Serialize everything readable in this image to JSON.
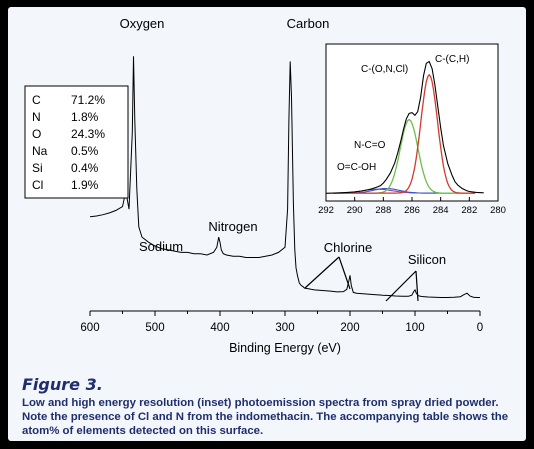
{
  "figure": {
    "label": "Figure 3.",
    "caption": "Low and high energy resolution (inset) photoemission spectra from spray dried powder. Note the presence of Cl and N from the indomethacin. The accompanying table shows the atom% of elements detected on this surface."
  },
  "composition_table": [
    {
      "element": "C",
      "value": "71.2%"
    },
    {
      "element": "N",
      "value": "1.8%"
    },
    {
      "element": "O",
      "value": "24.3%"
    },
    {
      "element": "Na",
      "value": "0.5%"
    },
    {
      "element": "Si",
      "value": "0.4%"
    },
    {
      "element": "Cl",
      "value": "1.9%"
    }
  ],
  "colors": {
    "text": "#1f2f6e",
    "background": "#f3f6fb",
    "spectrum": "#000000",
    "fit_c_ch": "#d23b2e",
    "fit_c_onc": "#6cbf4f",
    "fit_n_co": "#3b55c6",
    "fit_o_coh": "#9b3fa8"
  },
  "chart_data": [
    {
      "type": "line",
      "id": "survey",
      "xlabel": "Binding Energy (eV)",
      "ylabel": "",
      "xlim": [
        600,
        0
      ],
      "x_reversed": true,
      "xticks": [
        600,
        500,
        400,
        300,
        200,
        100,
        0
      ],
      "yaxis_visible": false,
      "grid": false,
      "x": [
        600,
        590,
        580,
        570,
        560,
        550,
        545,
        540,
        535,
        533,
        531,
        528,
        525,
        520,
        510,
        500,
        490,
        480,
        470,
        460,
        450,
        440,
        430,
        420,
        410,
        405,
        402,
        400,
        398,
        395,
        390,
        380,
        370,
        360,
        350,
        340,
        330,
        320,
        310,
        300,
        296,
        294,
        292,
        290,
        287,
        285,
        283,
        281,
        278,
        275,
        272,
        270,
        265,
        260,
        255,
        250,
        240,
        230,
        220,
        210,
        205,
        202,
        200,
        198,
        195,
        190,
        180,
        170,
        160,
        150,
        140,
        130,
        120,
        110,
        105,
        102,
        100,
        98,
        95,
        90,
        80,
        70,
        60,
        50,
        40,
        30,
        25,
        20,
        15,
        10,
        5,
        0
      ],
      "y": [
        37,
        37.3,
        37.8,
        38.5,
        39.5,
        41,
        47,
        40,
        70,
        100,
        75,
        48,
        33,
        29,
        27,
        25.5,
        24.5,
        24,
        23.5,
        23,
        23,
        22.5,
        22.5,
        22,
        23,
        25,
        29,
        27,
        24,
        22.5,
        22,
        21.5,
        21.5,
        21,
        21,
        21,
        21.5,
        22,
        23,
        25,
        40,
        75,
        98,
        84,
        42,
        24,
        17,
        14,
        11,
        10,
        9.5,
        9,
        8.8,
        8.5,
        8.3,
        8.2,
        8,
        7.8,
        7.5,
        7.6,
        8.5,
        11.5,
        14,
        10,
        7.3,
        7,
        6.8,
        6.6,
        6.4,
        6.2,
        6.1,
        5.9,
        5.8,
        5.8,
        6.2,
        7.6,
        8.3,
        7,
        6,
        5.7,
        5.5,
        5.4,
        5.3,
        5.3,
        5.4,
        5.6,
        6.4,
        7,
        5.8,
        5.4,
        5.3,
        5.3
      ],
      "ylim": [
        0,
        106
      ],
      "annotations": [
        {
          "text": "Oxygen",
          "x": 533
        },
        {
          "text": "Carbon",
          "x": 285
        },
        {
          "text": "Nitrogen",
          "x": 400
        },
        {
          "text": "Sodium",
          "x": 497
        },
        {
          "text": "Chlorine",
          "x": 200
        },
        {
          "text": "Silicon",
          "x": 100
        }
      ]
    },
    {
      "type": "line",
      "id": "inset",
      "xlabel": "",
      "ylabel": "",
      "xlim": [
        292,
        280
      ],
      "x_reversed": true,
      "xticks": [
        292,
        290,
        288,
        286,
        284,
        282,
        280
      ],
      "yaxis_visible": false,
      "grid": false,
      "x": [
        292,
        291.5,
        291,
        290.5,
        290,
        289.5,
        289,
        288.8,
        288.5,
        288.2,
        288,
        287.8,
        287.5,
        287.2,
        287,
        286.8,
        286.6,
        286.4,
        286.2,
        286,
        285.8,
        285.6,
        285.4,
        285.2,
        285,
        284.8,
        284.6,
        284.4,
        284.2,
        284,
        283.8,
        283.5,
        283.2,
        283,
        282.8,
        282.5,
        282.2,
        282,
        281.5,
        281
      ],
      "y": [
        1.5,
        1.6,
        1.8,
        2,
        2.3,
        2.8,
        3.6,
        4,
        4.8,
        5.8,
        7.2,
        9.2,
        13,
        18.5,
        24,
        30,
        37,
        43,
        46,
        46.5,
        45,
        47,
        55,
        67,
        74,
        75,
        71,
        62,
        50,
        38,
        28,
        18,
        11.5,
        8,
        6,
        4.2,
        3,
        2.5,
        2,
        1.8
      ],
      "ylim": [
        0,
        82
      ],
      "series": [
        {
          "id": "c-ch",
          "label": "C-(C,H)",
          "center": 284.8,
          "amplitude": 66,
          "sigma": 0.58
        },
        {
          "id": "c-onc",
          "label": "C-(O,N,Cl)",
          "center": 286.2,
          "amplitude": 41,
          "sigma": 0.62
        },
        {
          "id": "n-co",
          "label": "N-C=O",
          "center": 287.8,
          "amplitude": 2.6,
          "sigma": 0.9
        },
        {
          "id": "o-coh",
          "label": "O=C-OH",
          "center": 288.4,
          "amplitude": 2.2,
          "sigma": 1.05
        }
      ],
      "baseline": 1.6
    }
  ]
}
